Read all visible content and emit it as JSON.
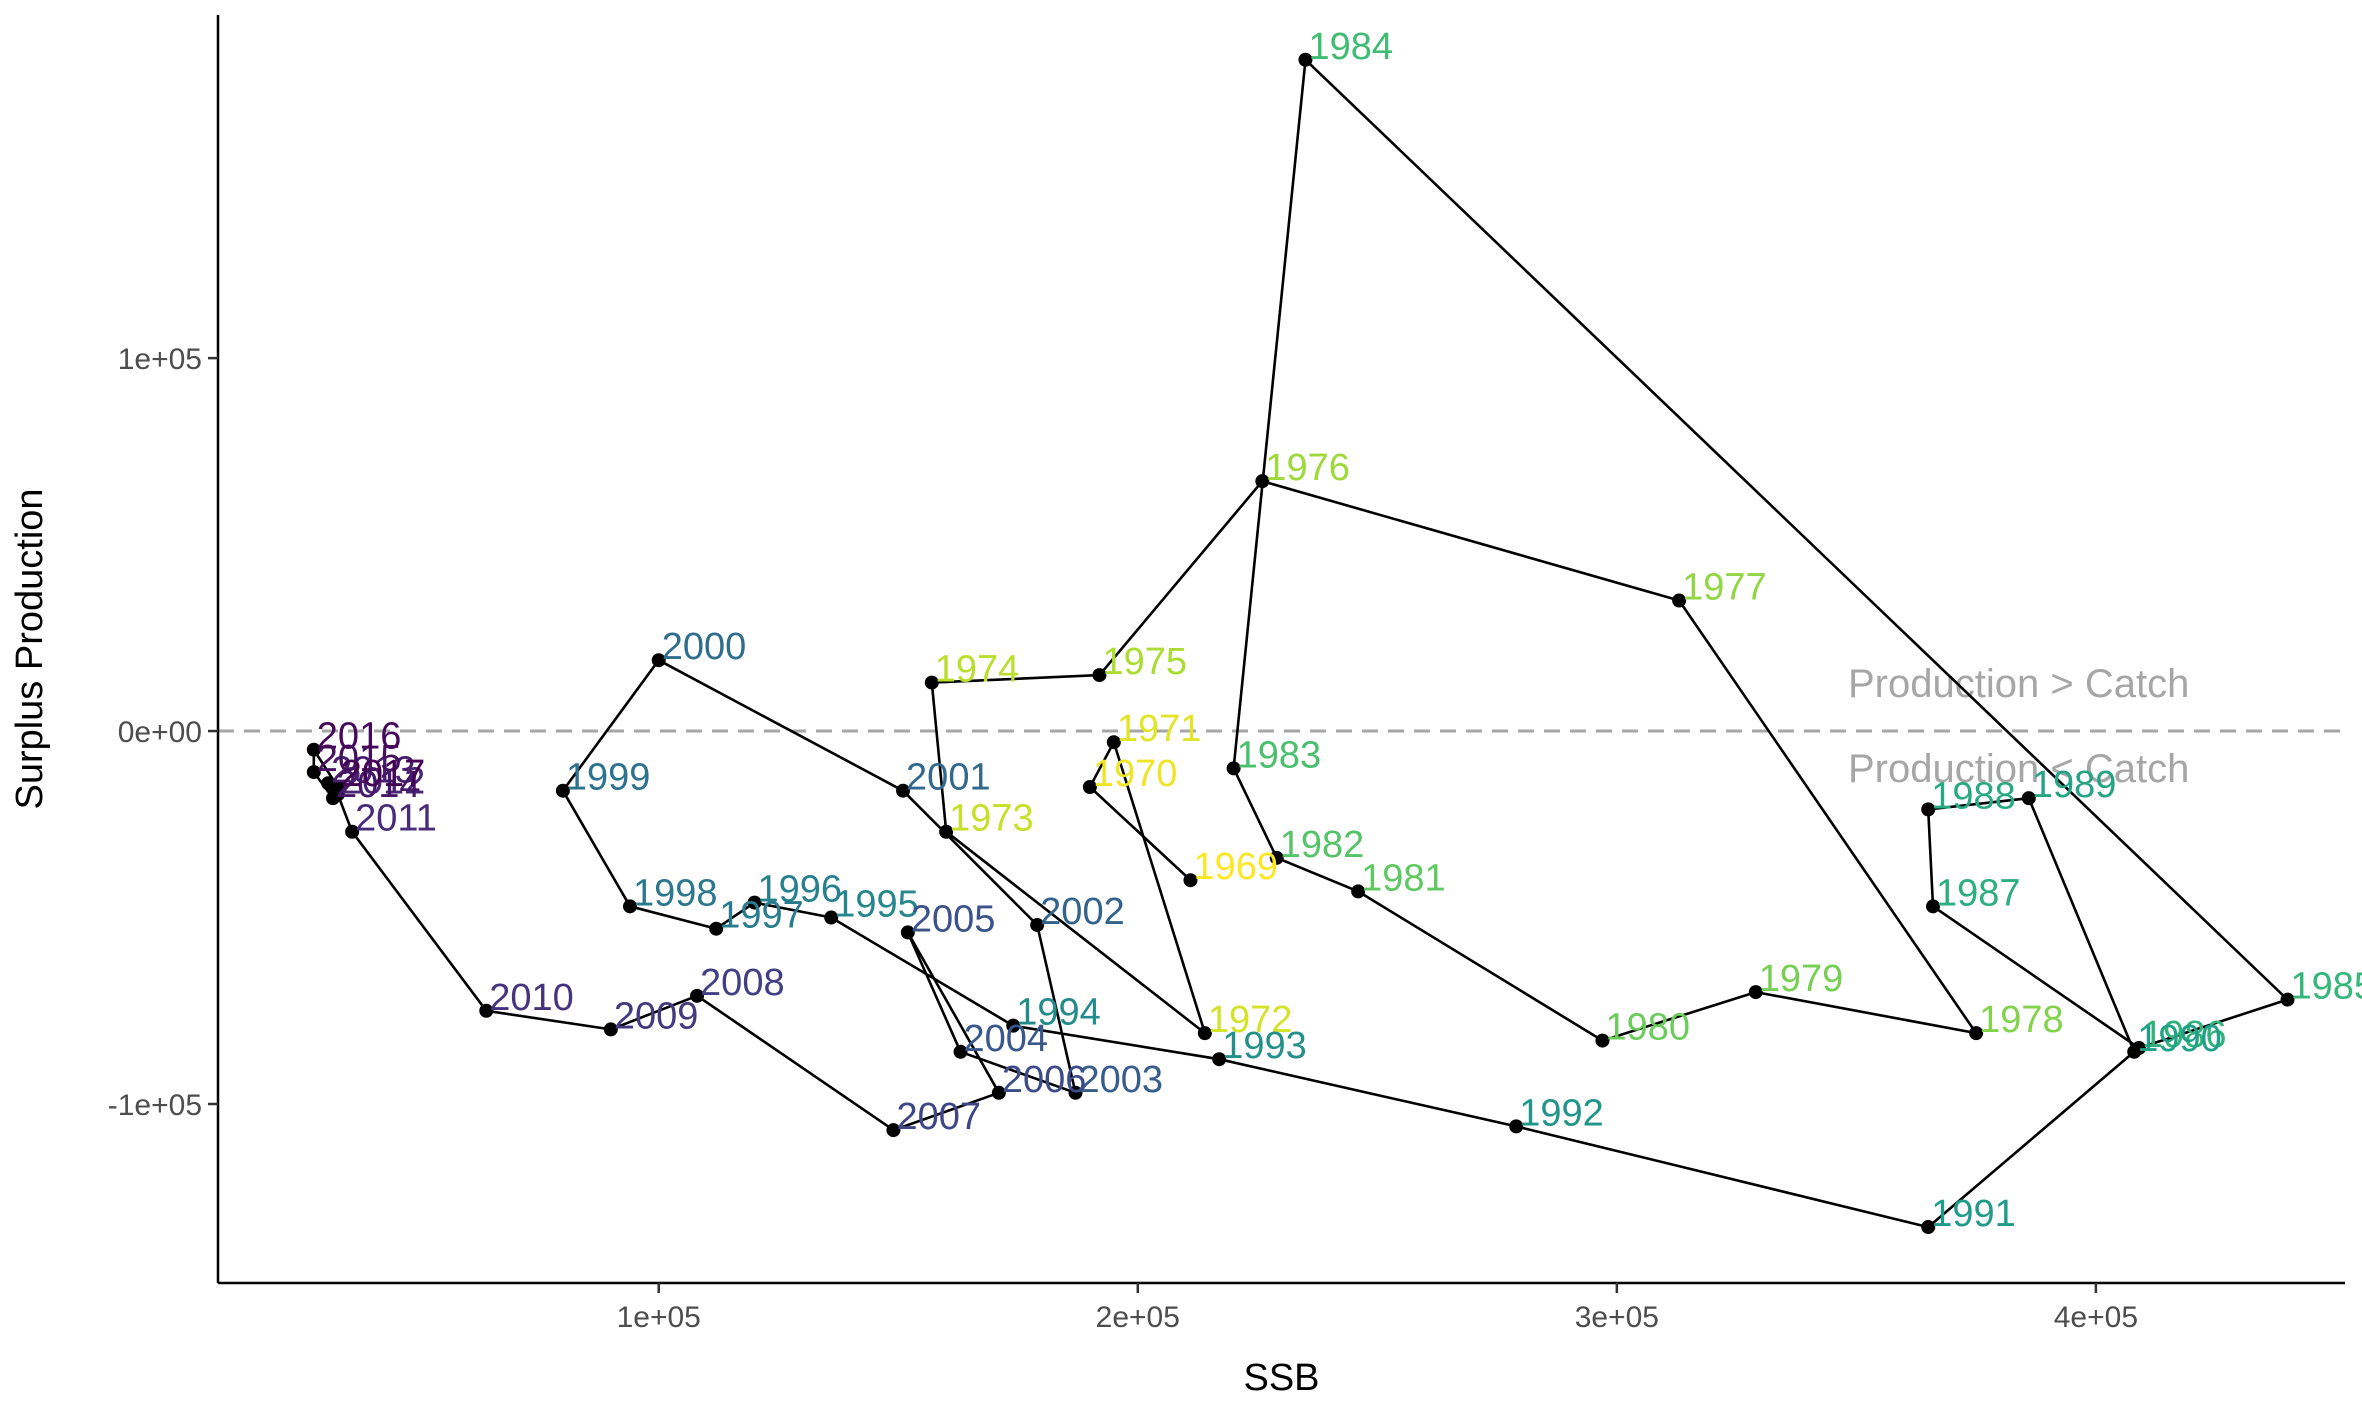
{
  "chart_data": {
    "type": "line",
    "title": "",
    "xlabel": "SSB",
    "ylabel": "Surplus Production",
    "xlim": [
      8000,
      452000
    ],
    "ylim": [
      -148000,
      192000
    ],
    "x_ticks": [
      {
        "value": 100000,
        "label": "1e+05"
      },
      {
        "value": 200000,
        "label": "2e+05"
      },
      {
        "value": 300000,
        "label": "3e+05"
      },
      {
        "value": 400000,
        "label": "4e+05"
      }
    ],
    "y_ticks": [
      {
        "value": 100000,
        "label": "1e+05"
      },
      {
        "value": 0,
        "label": "0e+00"
      },
      {
        "value": -100000,
        "label": "-1e+05"
      }
    ],
    "grid": false,
    "legend": "none",
    "reference_line": {
      "y": 0,
      "style": "dashed",
      "color": "#a6a6a6",
      "above_label": "Production > Catch",
      "below_label": "Production < Catch"
    },
    "series": [
      {
        "color_scale": "viridis",
        "points": [
          {
            "year": "1969",
            "x": 211000,
            "y": -40000
          },
          {
            "year": "1970",
            "x": 190000,
            "y": -15000
          },
          {
            "year": "1971",
            "x": 195000,
            "y": -3000
          },
          {
            "year": "1972",
            "x": 214000,
            "y": -81000
          },
          {
            "year": "1973",
            "x": 160000,
            "y": -27000
          },
          {
            "year": "1974",
            "x": 157000,
            "y": 13000
          },
          {
            "year": "1975",
            "x": 192000,
            "y": 15000
          },
          {
            "year": "1976",
            "x": 226000,
            "y": 67000
          },
          {
            "year": "1977",
            "x": 313000,
            "y": 35000
          },
          {
            "year": "1978",
            "x": 375000,
            "y": -81000
          },
          {
            "year": "1979",
            "x": 329000,
            "y": -70000
          },
          {
            "year": "1980",
            "x": 297000,
            "y": -83000
          },
          {
            "year": "1981",
            "x": 246000,
            "y": -43000
          },
          {
            "year": "1982",
            "x": 229000,
            "y": -34000
          },
          {
            "year": "1983",
            "x": 220000,
            "y": -10000
          },
          {
            "year": "1984",
            "x": 235000,
            "y": 180000
          },
          {
            "year": "1985",
            "x": 440000,
            "y": -72000
          },
          {
            "year": "1986",
            "x": 409000,
            "y": -85000
          },
          {
            "year": "1987",
            "x": 366000,
            "y": -47000
          },
          {
            "year": "1988",
            "x": 365000,
            "y": -21000
          },
          {
            "year": "1989",
            "x": 386000,
            "y": -18000
          },
          {
            "year": "1990",
            "x": 408000,
            "y": -86000
          },
          {
            "year": "1991",
            "x": 365000,
            "y": -133000
          },
          {
            "year": "1992",
            "x": 279000,
            "y": -106000
          },
          {
            "year": "1993",
            "x": 217000,
            "y": -88000
          },
          {
            "year": "1994",
            "x": 174000,
            "y": -79000
          },
          {
            "year": "1995",
            "x": 136000,
            "y": -50000
          },
          {
            "year": "1996",
            "x": 120000,
            "y": -46000
          },
          {
            "year": "1997",
            "x": 112000,
            "y": -53000
          },
          {
            "year": "1998",
            "x": 94000,
            "y": -47000
          },
          {
            "year": "1999",
            "x": 80000,
            "y": -16000
          },
          {
            "year": "2000",
            "x": 100000,
            "y": 19000
          },
          {
            "year": "2001",
            "x": 151000,
            "y": -16000
          },
          {
            "year": "2002",
            "x": 179000,
            "y": -52000
          },
          {
            "year": "2003",
            "x": 187000,
            "y": -97000
          },
          {
            "year": "2004",
            "x": 163000,
            "y": -86000
          },
          {
            "year": "2005",
            "x": 152000,
            "y": -54000
          },
          {
            "year": "2006",
            "x": 171000,
            "y": -97000
          },
          {
            "year": "2007",
            "x": 149000,
            "y": -107000
          },
          {
            "year": "2008",
            "x": 108000,
            "y": -71000
          },
          {
            "year": "2009",
            "x": 90000,
            "y": -80000
          },
          {
            "year": "2010",
            "x": 64000,
            "y": -75000
          },
          {
            "year": "2011",
            "x": 36000,
            "y": -27000
          },
          {
            "year": "2012",
            "x": 33000,
            "y": -17000
          },
          {
            "year": "2013",
            "x": 31000,
            "y": -14000
          },
          {
            "year": "2014",
            "x": 32000,
            "y": -18000
          },
          {
            "year": "2015",
            "x": 28000,
            "y": -11000
          },
          {
            "year": "2016",
            "x": 28000,
            "y": -5000
          },
          {
            "year": "2017",
            "x": 33000,
            "y": -15000
          }
        ]
      }
    ]
  }
}
